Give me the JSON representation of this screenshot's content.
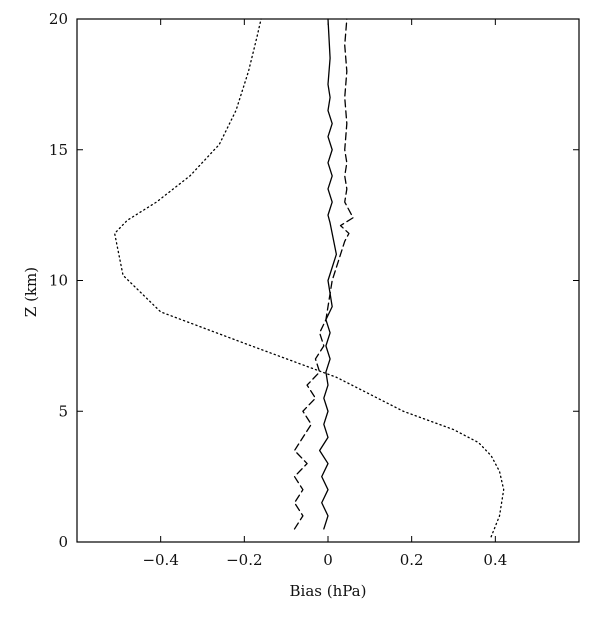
{
  "chart_data": {
    "type": "line",
    "xlabel": "Bias (hPa)",
    "ylabel": "Z (km)",
    "xlim": [
      -0.6,
      0.6
    ],
    "ylim": [
      0,
      20
    ],
    "xticks": [
      -0.4,
      -0.2,
      0,
      0.2,
      0.4
    ],
    "xtick_labels": [
      "−0.4",
      "−0.2",
      "0",
      "0.2",
      "0.4"
    ],
    "yticks": [
      0,
      5,
      10,
      15,
      20
    ],
    "ytick_labels": [
      "0",
      "5",
      "10",
      "15",
      "20"
    ],
    "grid": false,
    "legend": "none",
    "series": [
      {
        "style": "solid",
        "color": "#000000",
        "x": [
          -0.01,
          0.0,
          -0.015,
          0.0,
          -0.015,
          0.0,
          -0.02,
          0.0,
          -0.01,
          0.0,
          -0.01,
          0.0,
          -0.005,
          0.005,
          -0.005,
          0.005,
          -0.005,
          0.01,
          0.0,
          0.02,
          0.005,
          0.0,
          0.01,
          0.0,
          0.01,
          0.0,
          0.01,
          0.0,
          0.01,
          0.0,
          0.005,
          0.0,
          0.005,
          0.0
        ],
        "y": [
          0.5,
          1.0,
          1.5,
          2.0,
          2.5,
          3.0,
          3.5,
          4.0,
          4.5,
          5.0,
          5.5,
          6.0,
          6.5,
          7.0,
          7.5,
          8.0,
          8.5,
          9.0,
          10.0,
          11.0,
          12.2,
          12.5,
          13.0,
          13.5,
          14.0,
          14.5,
          15.0,
          15.5,
          16.0,
          16.5,
          17.0,
          17.5,
          18.5,
          20.0
        ]
      },
      {
        "style": "dashed",
        "color": "#000000",
        "x": [
          -0.08,
          -0.06,
          -0.08,
          -0.06,
          -0.08,
          -0.05,
          -0.08,
          -0.06,
          -0.04,
          -0.06,
          -0.03,
          -0.05,
          -0.02,
          -0.03,
          -0.01,
          -0.02,
          -0.005,
          0.0,
          0.01,
          0.03,
          0.04,
          0.05,
          0.03,
          0.06,
          0.04,
          0.045,
          0.04,
          0.045,
          0.04,
          0.045,
          0.04,
          0.045,
          0.04,
          0.045
        ],
        "y": [
          0.5,
          1.0,
          1.5,
          2.0,
          2.5,
          3.0,
          3.5,
          4.0,
          4.5,
          5.0,
          5.5,
          6.0,
          6.5,
          7.0,
          7.5,
          8.0,
          8.5,
          9.0,
          10.0,
          11.0,
          11.5,
          11.8,
          12.1,
          12.4,
          13.0,
          13.5,
          14.0,
          14.5,
          15.0,
          16.0,
          17.0,
          18.0,
          19.0,
          20.0
        ]
      },
      {
        "style": "dotted",
        "color": "#000000",
        "x": [
          0.39,
          0.41,
          0.42,
          0.41,
          0.39,
          0.36,
          0.3,
          0.18,
          0.02,
          -0.2,
          -0.4,
          -0.49,
          -0.51,
          -0.48,
          -0.41,
          -0.33,
          -0.26,
          -0.22,
          -0.19,
          -0.17,
          -0.16
        ],
        "y": [
          0.2,
          1.0,
          2.0,
          2.7,
          3.3,
          3.8,
          4.3,
          5.0,
          6.3,
          7.6,
          8.8,
          10.2,
          11.8,
          12.3,
          13.0,
          14.0,
          15.2,
          16.5,
          18.0,
          19.3,
          20.0
        ]
      }
    ]
  }
}
